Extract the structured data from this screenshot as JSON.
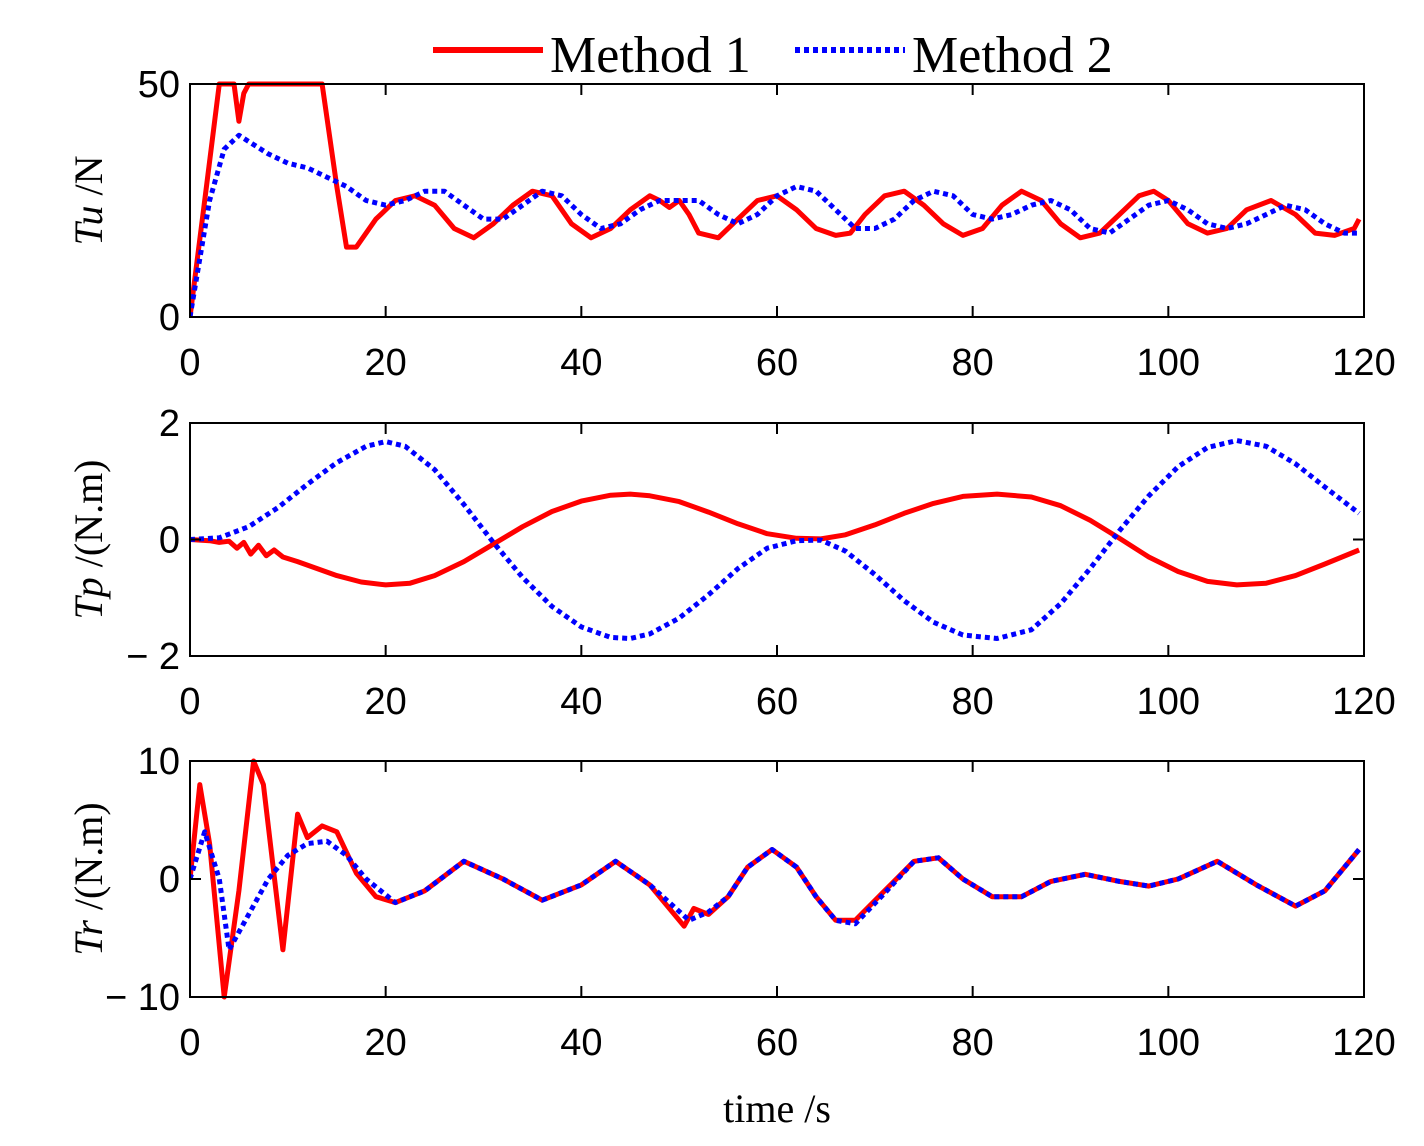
{
  "legend": {
    "position": "top",
    "entries": [
      {
        "label": "Method 1",
        "color": "#ff0000",
        "style": "solid"
      },
      {
        "label": "Method 2",
        "color": "#0000ff",
        "style": "dotted"
      }
    ]
  },
  "xlabel": "time /s",
  "chart_data": [
    {
      "type": "line",
      "ylabel_italic": "Tu",
      "ylabel_unit": " /N",
      "xlim": [
        0,
        120
      ],
      "ylim": [
        0,
        50
      ],
      "xticks": [
        0,
        20,
        40,
        60,
        80,
        100,
        120
      ],
      "xtick_labels": [
        "0",
        "20",
        "40",
        "60",
        "80",
        "100",
        "120"
      ],
      "yticks": [
        0,
        50
      ],
      "ytick_labels": [
        "0",
        "50"
      ],
      "series": [
        {
          "name": "Method 1",
          "color": "#ff0000",
          "x": [
            0,
            1.5,
            3,
            4.5,
            5,
            5.5,
            6,
            7,
            9,
            11,
            13.5,
            15,
            16,
            17,
            19,
            21,
            23,
            25,
            27,
            29,
            31,
            33,
            35,
            37,
            39,
            41,
            43,
            45,
            47,
            48,
            49,
            50,
            51,
            52,
            54,
            56,
            58,
            60,
            62,
            64,
            66,
            67.5,
            69,
            71,
            73,
            75,
            77,
            79,
            81,
            83,
            85,
            87,
            89,
            91,
            93,
            95,
            97,
            98.5,
            100,
            102,
            104,
            106,
            108,
            110.5,
            113,
            115,
            117,
            119,
            119.5
          ],
          "y": [
            0,
            25,
            50,
            50,
            42,
            48,
            50,
            50,
            50,
            50,
            50,
            28,
            15,
            15,
            21,
            25,
            26,
            24,
            19,
            17,
            20,
            24,
            27,
            26,
            20,
            17,
            19,
            23,
            26,
            25,
            23.5,
            25,
            22,
            18,
            17,
            21,
            25,
            26,
            23,
            19,
            17.5,
            18,
            22,
            26,
            27,
            24,
            20,
            17.5,
            19,
            24,
            27,
            25,
            20,
            17,
            18,
            22,
            26,
            27,
            25,
            20,
            18,
            19,
            23,
            25,
            22,
            18,
            17.5,
            19,
            21
          ]
        },
        {
          "name": "Method 2",
          "color": "#0000ff",
          "x": [
            0,
            2,
            3.5,
            5,
            6.5,
            8,
            10,
            12,
            14,
            16,
            18,
            20,
            22,
            24,
            26,
            28,
            30,
            32,
            34,
            36,
            38,
            40,
            42,
            44,
            46,
            48,
            50,
            52,
            54,
            56,
            58,
            60,
            62,
            64,
            66,
            68,
            70,
            72,
            74,
            76,
            78,
            80,
            82,
            84,
            86,
            88,
            90,
            92,
            94,
            96,
            98,
            100,
            102,
            104,
            106,
            108,
            110,
            112,
            114,
            116,
            118,
            119.5
          ],
          "y": [
            0,
            25,
            36,
            39,
            37,
            35,
            33,
            32,
            30,
            28,
            25,
            24,
            25,
            27,
            27,
            24,
            21,
            21,
            24,
            27,
            26,
            22,
            19,
            20,
            23,
            25,
            25,
            25,
            22,
            20,
            22,
            26,
            28,
            27,
            23,
            19,
            19,
            21,
            25,
            27,
            26,
            22,
            21,
            22,
            24,
            25,
            23,
            19,
            18,
            21,
            24,
            25,
            23,
            20,
            19,
            20,
            22,
            24,
            23,
            20,
            18,
            18
          ]
        }
      ]
    },
    {
      "type": "line",
      "ylabel_italic": "Tp",
      "ylabel_unit": " /(N.m)",
      "xlim": [
        0,
        120
      ],
      "ylim": [
        -2,
        2
      ],
      "xticks": [
        0,
        20,
        40,
        60,
        80,
        100,
        120
      ],
      "xtick_labels": [
        "0",
        "20",
        "40",
        "60",
        "80",
        "100",
        "120"
      ],
      "yticks": [
        -2,
        0,
        2
      ],
      "ytick_labels": [
        "− 2",
        "0",
        "2"
      ],
      "series": [
        {
          "name": "Method 1",
          "color": "#ff0000",
          "x": [
            0,
            2,
            3,
            4,
            4.8,
            5.5,
            6.2,
            7,
            7.8,
            8.6,
            9.5,
            11,
            13,
            15,
            17.5,
            20,
            22.5,
            25,
            28,
            31,
            34,
            37,
            40,
            43,
            45,
            47,
            50,
            53,
            56,
            59,
            62,
            64.5,
            67,
            70,
            73,
            76,
            79,
            82.5,
            86,
            89,
            92,
            95,
            98,
            101,
            104,
            107,
            110,
            113,
            116,
            119.5
          ],
          "y": [
            0,
            -0.02,
            -0.05,
            -0.03,
            -0.15,
            -0.05,
            -0.25,
            -0.1,
            -0.28,
            -0.18,
            -0.3,
            -0.38,
            -0.5,
            -0.62,
            -0.73,
            -0.78,
            -0.75,
            -0.62,
            -0.38,
            -0.08,
            0.22,
            0.48,
            0.66,
            0.76,
            0.78,
            0.75,
            0.65,
            0.47,
            0.27,
            0.1,
            0.02,
            0.01,
            0.08,
            0.25,
            0.45,
            0.62,
            0.74,
            0.78,
            0.73,
            0.58,
            0.33,
            0.02,
            -0.3,
            -0.55,
            -0.72,
            -0.78,
            -0.75,
            -0.62,
            -0.42,
            -0.18
          ]
        },
        {
          "name": "Method 2",
          "color": "#0000ff",
          "x": [
            0,
            3,
            6,
            9,
            12,
            15,
            18,
            20,
            22,
            25,
            28,
            31,
            34,
            37,
            40,
            43,
            45,
            47,
            50,
            53,
            56,
            59,
            62,
            64.5,
            67,
            70,
            73,
            76,
            79,
            82.5,
            86,
            89,
            92,
            95,
            98,
            101,
            104,
            107,
            110,
            113,
            116,
            119.5
          ],
          "y": [
            0,
            0.03,
            0.22,
            0.55,
            0.95,
            1.32,
            1.6,
            1.68,
            1.6,
            1.2,
            0.6,
            -0.05,
            -0.65,
            -1.15,
            -1.5,
            -1.68,
            -1.7,
            -1.62,
            -1.35,
            -0.95,
            -0.5,
            -0.15,
            -0.02,
            -0.01,
            -0.2,
            -0.6,
            -1.05,
            -1.42,
            -1.64,
            -1.7,
            -1.55,
            -1.1,
            -0.5,
            0.15,
            0.75,
            1.25,
            1.58,
            1.7,
            1.6,
            1.3,
            0.9,
            0.45
          ]
        }
      ]
    },
    {
      "type": "line",
      "ylabel_italic": "Tr",
      "ylabel_unit": " /(N.m)",
      "xlim": [
        0,
        120
      ],
      "ylim": [
        -10,
        10
      ],
      "xticks": [
        0,
        20,
        40,
        60,
        80,
        100,
        120
      ],
      "xtick_labels": [
        "0",
        "20",
        "40",
        "60",
        "80",
        "100",
        "120"
      ],
      "yticks": [
        -10,
        0,
        10
      ],
      "ytick_labels": [
        "− 10",
        "0",
        "10"
      ],
      "series": [
        {
          "name": "Method 1",
          "color": "#ff0000",
          "x": [
            0,
            1,
            2,
            3.5,
            5,
            6.5,
            7.5,
            9.5,
            11,
            12,
            13.5,
            15,
            17,
            19,
            21,
            24,
            28,
            32,
            36,
            40,
            43.5,
            47,
            50.5,
            51.5,
            53,
            55,
            57,
            59.5,
            62,
            64,
            66,
            68,
            71,
            74,
            76.5,
            79,
            82,
            85,
            88,
            91.5,
            95,
            98,
            101,
            105,
            109,
            113,
            116,
            119.5
          ],
          "y": [
            0,
            8,
            3,
            -10,
            -1,
            10,
            8,
            -6,
            5.5,
            3.5,
            4.5,
            4,
            0.5,
            -1.5,
            -2,
            -1,
            1.5,
            0,
            -1.8,
            -0.5,
            1.5,
            -0.5,
            -4,
            -2.5,
            -3,
            -1.5,
            1,
            2.5,
            1,
            -1.5,
            -3.5,
            -3.5,
            -1,
            1.5,
            1.8,
            0,
            -1.5,
            -1.5,
            -0.2,
            0.4,
            -0.2,
            -0.6,
            0,
            1.5,
            -0.5,
            -2.3,
            -1,
            2.5
          ]
        },
        {
          "name": "Method 2",
          "color": "#0000ff",
          "x": [
            0,
            1.5,
            3,
            4,
            6,
            8,
            10,
            12,
            14,
            16,
            18,
            21,
            24,
            28,
            32,
            36,
            40,
            43.5,
            47,
            51,
            53,
            55,
            57,
            59.5,
            62,
            64,
            66,
            68,
            71,
            74,
            76.5,
            79,
            82,
            85,
            88,
            91.5,
            95,
            98,
            101,
            105,
            109,
            113,
            116,
            119.5
          ],
          "y": [
            0,
            4,
            0,
            -6,
            -3,
            0,
            2,
            3,
            3.2,
            2,
            0,
            -2,
            -1,
            1.5,
            0,
            -1.8,
            -0.5,
            1.5,
            -0.5,
            -3.5,
            -2.8,
            -1.5,
            1,
            2.5,
            1,
            -1.5,
            -3.5,
            -3.8,
            -1.2,
            1.5,
            1.8,
            0,
            -1.5,
            -1.5,
            -0.2,
            0.4,
            -0.2,
            -0.6,
            0,
            1.5,
            -0.5,
            -2.3,
            -1,
            2.5
          ]
        }
      ]
    }
  ]
}
